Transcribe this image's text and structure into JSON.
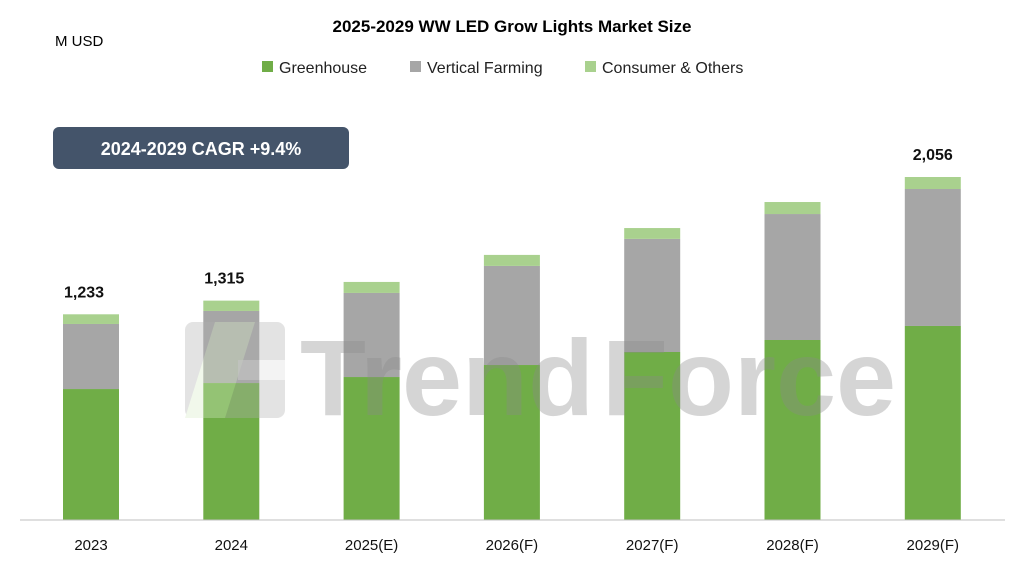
{
  "chart_data": {
    "type": "bar",
    "stacked": true,
    "title": "2025-2029 WW LED Grow Lights Market Size",
    "ylabel": "M USD",
    "annotation": "2024-2029 CAGR +9.4%",
    "watermark": "TrendForce",
    "categories": [
      "2023",
      "2024",
      "2025(E)",
      "2026(F)",
      "2027(F)",
      "2028(F)",
      "2029(F)"
    ],
    "series": [
      {
        "name": "Greenhouse",
        "color": "#70ad47",
        "values": [
          785,
          821,
          857,
          929,
          1007,
          1079,
          1163
        ]
      },
      {
        "name": "Vertical Farming",
        "color": "#a6a6a6",
        "values": [
          390,
          432,
          504,
          594,
          678,
          755,
          821
        ]
      },
      {
        "name": "Consumer & Others",
        "color": "#a9d18e",
        "values": [
          58,
          62,
          66,
          66,
          65,
          72,
          72
        ]
      }
    ],
    "data_labels": [
      "1,233",
      "1,315",
      "",
      "",
      "",
      "",
      "2,056"
    ],
    "ylim": [
      0,
      2056
    ],
    "grid": false,
    "legend_position": "top"
  }
}
